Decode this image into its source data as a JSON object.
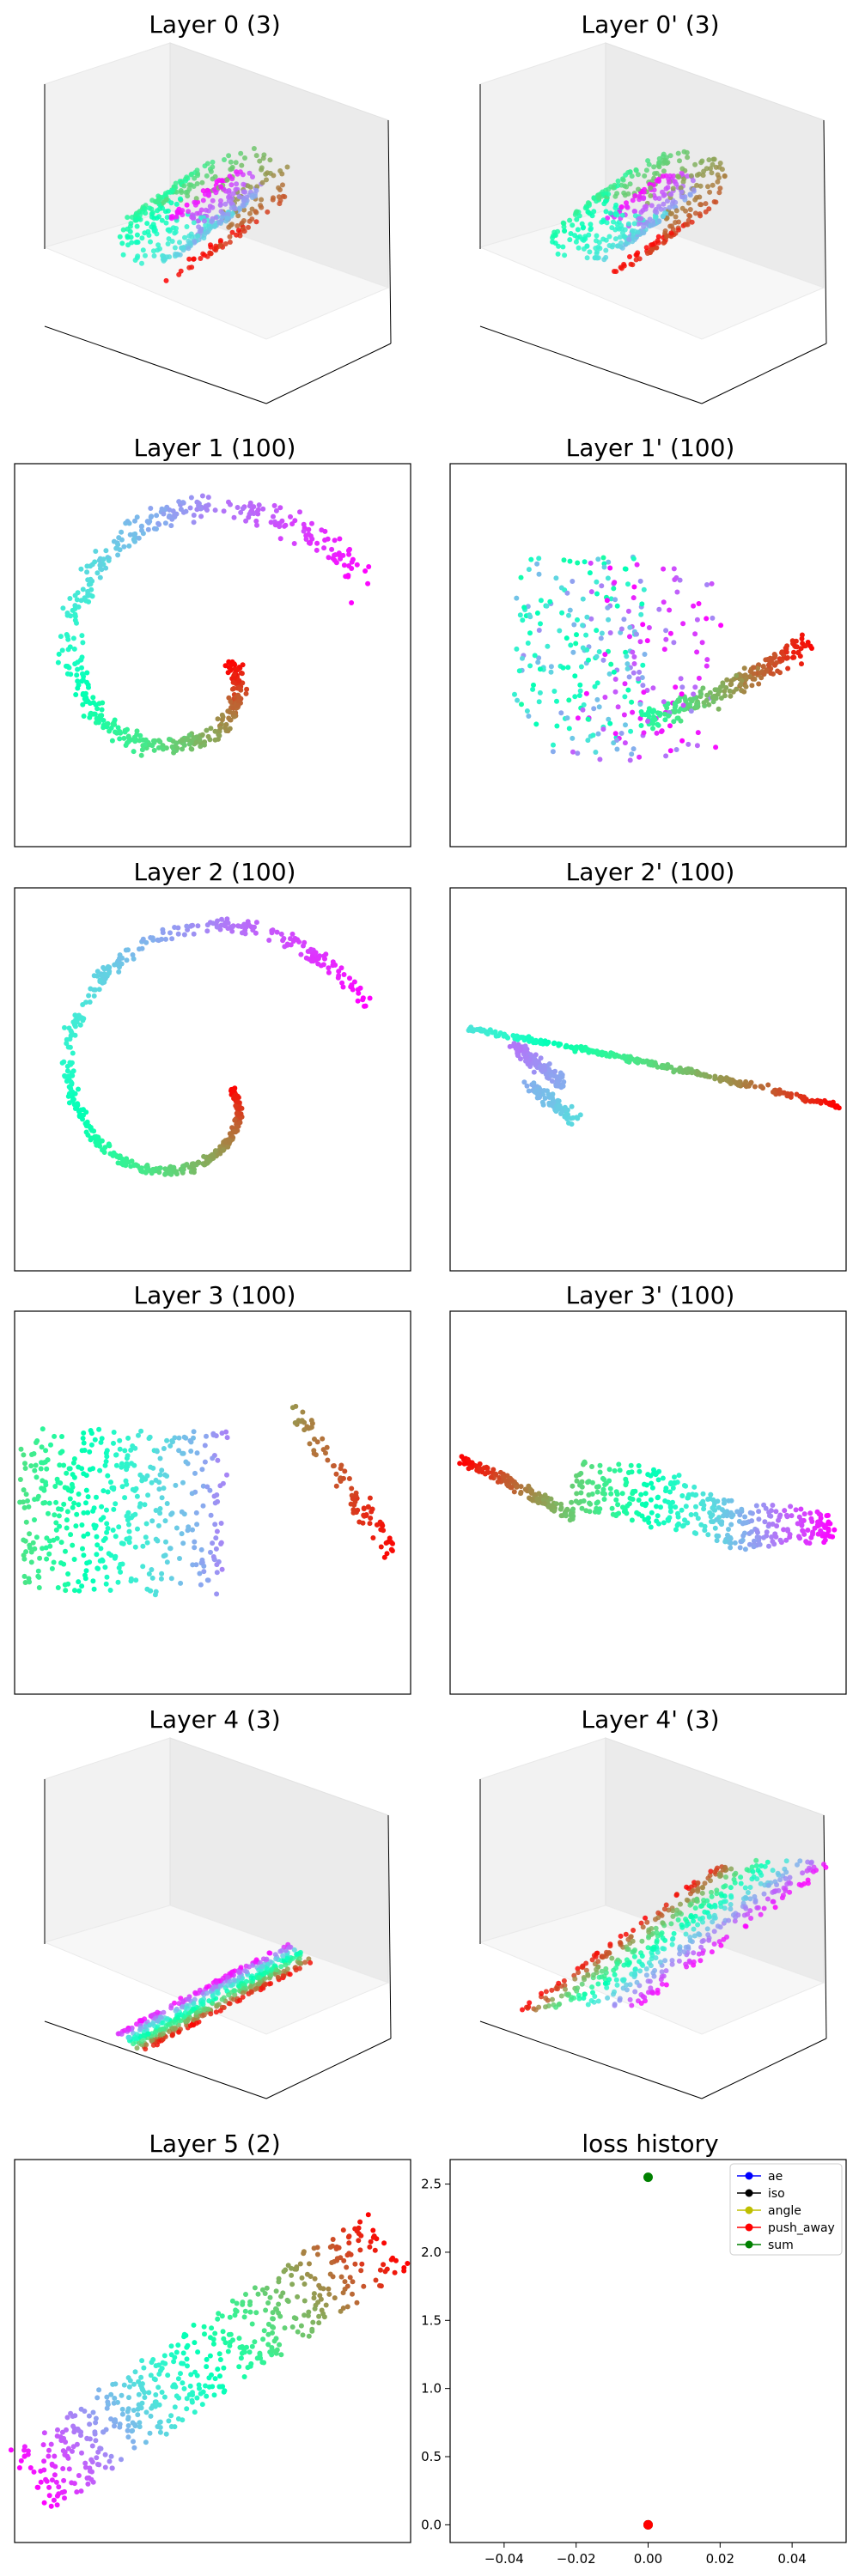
{
  "figure": {
    "panels": [
      {
        "title": "Layer 0 (3)",
        "type": "scatter3d",
        "shape": "swiss3d_a"
      },
      {
        "title": "Layer 0' (3)",
        "type": "scatter3d",
        "shape": "swiss3d_b"
      },
      {
        "title": "Layer 1 (100)",
        "type": "scatter",
        "shape": "spiral_loose"
      },
      {
        "title": "Layer 1' (100)",
        "type": "scatter",
        "shape": "fold_1p"
      },
      {
        "title": "Layer 2 (100)",
        "type": "scatter",
        "shape": "spiral_tight"
      },
      {
        "title": "Layer 2' (100)",
        "type": "scatter",
        "shape": "fold_2p"
      },
      {
        "title": "Layer 3 (100)",
        "type": "scatter",
        "shape": "sheet_3"
      },
      {
        "title": "Layer 3' (100)",
        "type": "scatter",
        "shape": "crescent_3p"
      },
      {
        "title": "Layer 4 (3)",
        "type": "scatter3d",
        "shape": "ribbon3d"
      },
      {
        "title": "Layer 4' (3)",
        "type": "scatter3d",
        "shape": "plane3d"
      },
      {
        "title": "Layer 5 (2)",
        "type": "scatter",
        "shape": "band_5"
      }
    ],
    "colormap": "rainbow"
  },
  "chart_data": {
    "type": "line",
    "title": "loss history",
    "xlabel": "",
    "ylabel": "",
    "xlim": [
      -0.055,
      0.055
    ],
    "ylim": [
      -0.13,
      2.68
    ],
    "xticks": [
      "−0.04",
      "−0.02",
      "0.00",
      "0.02",
      "0.04"
    ],
    "xtick_values": [
      -0.04,
      -0.02,
      0.0,
      0.02,
      0.04
    ],
    "yticks": [
      "0.0",
      "0.5",
      "1.0",
      "1.5",
      "2.0",
      "2.5"
    ],
    "ytick_values": [
      0.0,
      0.5,
      1.0,
      1.5,
      2.0,
      2.5
    ],
    "legend_position": "top-right",
    "series": [
      {
        "name": "ae",
        "color": "#0000ff",
        "x": [
          0
        ],
        "y": [
          0.0
        ]
      },
      {
        "name": "iso",
        "color": "#000000",
        "x": [
          0
        ],
        "y": [
          0.0
        ]
      },
      {
        "name": "angle",
        "color": "#bfbf00",
        "x": [
          0
        ],
        "y": [
          0.0
        ]
      },
      {
        "name": "push_away",
        "color": "#ff0000",
        "x": [
          0
        ],
        "y": [
          0.0
        ]
      },
      {
        "name": "sum",
        "color": "#008000",
        "x": [
          0
        ],
        "y": [
          2.55
        ]
      }
    ]
  }
}
